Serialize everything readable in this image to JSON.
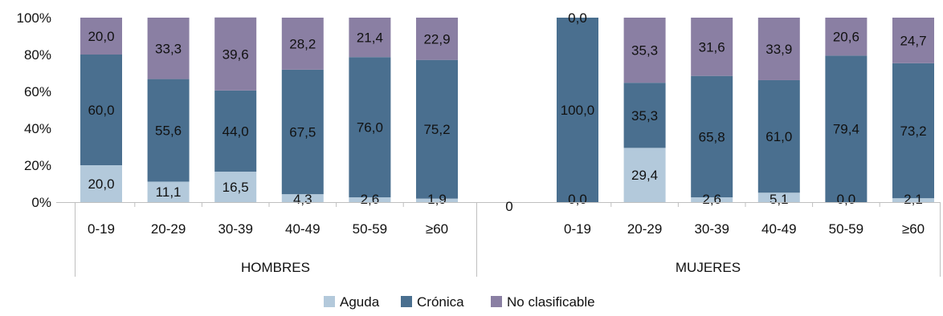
{
  "chart_data": {
    "type": "bar",
    "stacked": true,
    "percent_stacked": true,
    "ylim": [
      0,
      100
    ],
    "yticks": [
      "0%",
      "20%",
      "40%",
      "60%",
      "80%",
      "100%"
    ],
    "grid": false,
    "legend_position": "bottom",
    "groups": [
      {
        "label": "HOMBRES",
        "categories": [
          "0-19",
          "20-29",
          "30-39",
          "40-49",
          "50-59",
          "≥60"
        ]
      },
      {
        "label": "MUJERES",
        "categories": [
          "0-19",
          "20-29",
          "30-39",
          "40-49",
          "50-59",
          "≥60"
        ]
      }
    ],
    "gap_label": "0",
    "series": [
      {
        "name": "Aguda",
        "color": "#b3c9db",
        "values": [
          20.0,
          11.1,
          16.5,
          4.3,
          2.6,
          1.9,
          0.0,
          29.4,
          2.6,
          5.1,
          0.0,
          2.1
        ],
        "labels": [
          "20,0",
          "11,1",
          "16,5",
          "4,3",
          "2,6",
          "1,9",
          "0,0",
          "29,4",
          "2,6",
          "5,1",
          "0,0",
          "2,1"
        ]
      },
      {
        "name": "Crónica",
        "color": "#4a6f8f",
        "values": [
          60.0,
          55.6,
          44.0,
          67.5,
          76.0,
          75.2,
          100.0,
          35.3,
          65.8,
          61.0,
          79.4,
          73.2
        ],
        "labels": [
          "60,0",
          "55,6",
          "44,0",
          "67,5",
          "76,0",
          "75,2",
          "100,0",
          "35,3",
          "65,8",
          "61,0",
          "79,4",
          "73,2"
        ]
      },
      {
        "name": "No clasificable",
        "color": "#8a7fa3",
        "values": [
          20.0,
          33.3,
          39.6,
          28.2,
          21.4,
          22.9,
          0.0,
          35.3,
          31.6,
          33.9,
          20.6,
          24.7
        ],
        "labels": [
          "20,0",
          "33,3",
          "39,6",
          "28,2",
          "21,4",
          "22,9",
          "0,0",
          "35,3",
          "31,6",
          "33,9",
          "20,6",
          "24,7"
        ]
      }
    ]
  }
}
